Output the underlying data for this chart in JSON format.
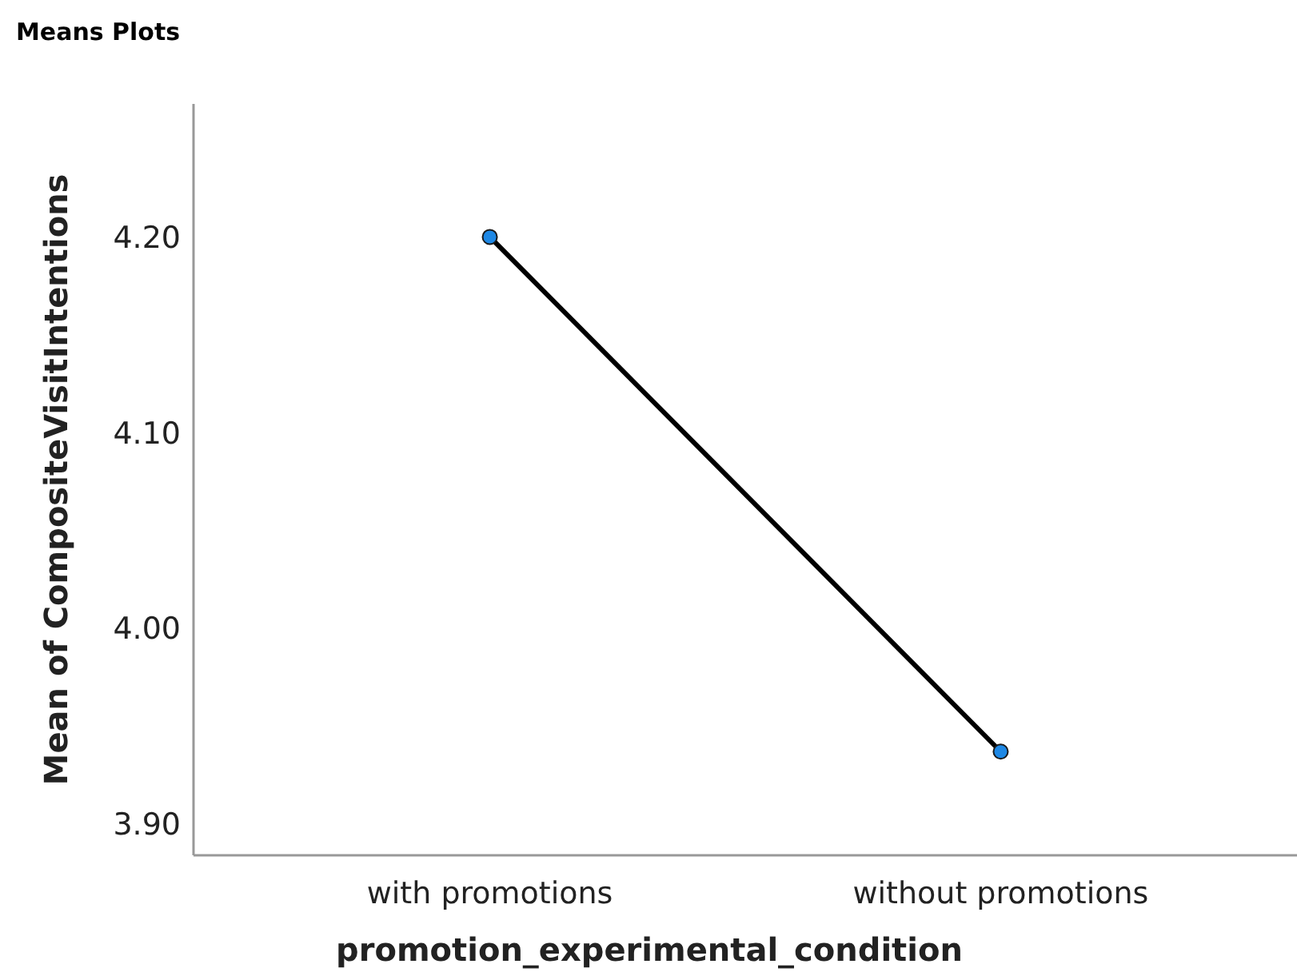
{
  "chart_data": {
    "type": "line",
    "title": "Means Plots",
    "xlabel": "promotion_experimental_condition",
    "ylabel": "Mean of CompositeVisitIntentions",
    "categories": [
      "with promotions",
      "without promotions"
    ],
    "series": [
      {
        "color": "#000000",
        "values": [
          4.2,
          3.937
        ]
      }
    ],
    "ylim": [
      3.884,
      4.268
    ],
    "yticks": [
      {
        "value": 3.9,
        "label": "3.90"
      },
      {
        "value": 4.0,
        "label": "4.00"
      },
      {
        "value": 4.1,
        "label": "4.10"
      },
      {
        "value": 4.2,
        "label": "4.20"
      }
    ],
    "marker": "circle"
  }
}
